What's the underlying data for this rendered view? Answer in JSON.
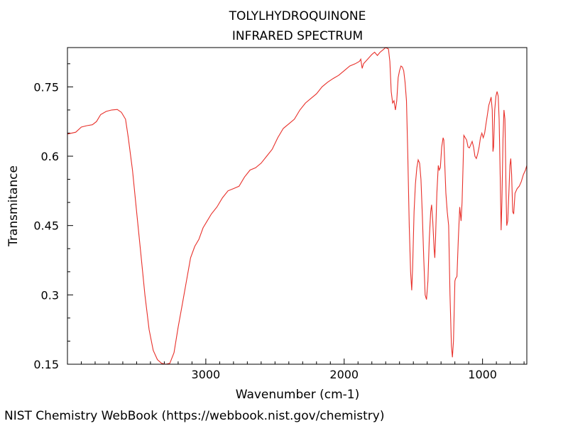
{
  "chart_data": {
    "type": "line",
    "title": "TOLYLHYDROQUINONE",
    "subtitle": "INFRARED SPECTRUM",
    "xlabel": "Wavenumber (cm-1)",
    "ylabel": "Transmitance",
    "xlim": [
      4000,
      680
    ],
    "ylim": [
      0.15,
      0.835
    ],
    "x_reversed": true,
    "grid": false,
    "x_ticks": [
      3000,
      2000,
      1000
    ],
    "x_tick_labels": [
      "3000",
      "2000",
      "1000"
    ],
    "y_ticks": [
      0.15,
      0.3,
      0.45,
      0.6,
      0.75
    ],
    "y_tick_labels": [
      "0.15",
      "0.3",
      "0.45",
      "0.6",
      "0.75"
    ],
    "line_color": "#e8302a",
    "series": [
      {
        "points": [
          [
            4000,
            0.648
          ],
          [
            3940,
            0.652
          ],
          [
            3900,
            0.663
          ],
          [
            3860,
            0.666
          ],
          [
            3820,
            0.668
          ],
          [
            3790,
            0.675
          ],
          [
            3760,
            0.69
          ],
          [
            3720,
            0.697
          ],
          [
            3680,
            0.7
          ],
          [
            3640,
            0.701
          ],
          [
            3610,
            0.695
          ],
          [
            3580,
            0.68
          ],
          [
            3560,
            0.64
          ],
          [
            3530,
            0.57
          ],
          [
            3500,
            0.48
          ],
          [
            3470,
            0.39
          ],
          [
            3440,
            0.3
          ],
          [
            3410,
            0.225
          ],
          [
            3380,
            0.18
          ],
          [
            3350,
            0.16
          ],
          [
            3320,
            0.152
          ],
          [
            3290,
            0.15
          ],
          [
            3260,
            0.152
          ],
          [
            3230,
            0.175
          ],
          [
            3200,
            0.23
          ],
          [
            3170,
            0.28
          ],
          [
            3140,
            0.33
          ],
          [
            3110,
            0.38
          ],
          [
            3080,
            0.405
          ],
          [
            3050,
            0.42
          ],
          [
            3020,
            0.445
          ],
          [
            2990,
            0.46
          ],
          [
            2960,
            0.475
          ],
          [
            2920,
            0.49
          ],
          [
            2880,
            0.51
          ],
          [
            2840,
            0.525
          ],
          [
            2800,
            0.53
          ],
          [
            2760,
            0.535
          ],
          [
            2720,
            0.555
          ],
          [
            2680,
            0.57
          ],
          [
            2640,
            0.575
          ],
          [
            2600,
            0.585
          ],
          [
            2560,
            0.6
          ],
          [
            2520,
            0.615
          ],
          [
            2480,
            0.64
          ],
          [
            2440,
            0.66
          ],
          [
            2400,
            0.67
          ],
          [
            2360,
            0.68
          ],
          [
            2320,
            0.7
          ],
          [
            2280,
            0.715
          ],
          [
            2240,
            0.725
          ],
          [
            2200,
            0.735
          ],
          [
            2160,
            0.75
          ],
          [
            2120,
            0.76
          ],
          [
            2080,
            0.768
          ],
          [
            2040,
            0.775
          ],
          [
            2000,
            0.785
          ],
          [
            1960,
            0.795
          ],
          [
            1920,
            0.8
          ],
          [
            1890,
            0.805
          ],
          [
            1880,
            0.81
          ],
          [
            1870,
            0.79
          ],
          [
            1860,
            0.8
          ],
          [
            1830,
            0.81
          ],
          [
            1800,
            0.82
          ],
          [
            1780,
            0.825
          ],
          [
            1760,
            0.818
          ],
          [
            1740,
            0.825
          ],
          [
            1720,
            0.83
          ],
          [
            1700,
            0.835
          ],
          [
            1680,
            0.832
          ],
          [
            1670,
            0.805
          ],
          [
            1660,
            0.74
          ],
          [
            1650,
            0.715
          ],
          [
            1640,
            0.72
          ],
          [
            1630,
            0.7
          ],
          [
            1620,
            0.72
          ],
          [
            1610,
            0.77
          ],
          [
            1600,
            0.785
          ],
          [
            1590,
            0.795
          ],
          [
            1580,
            0.793
          ],
          [
            1570,
            0.785
          ],
          [
            1560,
            0.76
          ],
          [
            1550,
            0.72
          ],
          [
            1540,
            0.6
          ],
          [
            1530,
            0.45
          ],
          [
            1520,
            0.35
          ],
          [
            1512,
            0.31
          ],
          [
            1505,
            0.36
          ],
          [
            1495,
            0.48
          ],
          [
            1485,
            0.54
          ],
          [
            1475,
            0.575
          ],
          [
            1465,
            0.592
          ],
          [
            1455,
            0.585
          ],
          [
            1445,
            0.55
          ],
          [
            1435,
            0.47
          ],
          [
            1425,
            0.38
          ],
          [
            1415,
            0.3
          ],
          [
            1405,
            0.29
          ],
          [
            1395,
            0.33
          ],
          [
            1385,
            0.42
          ],
          [
            1375,
            0.48
          ],
          [
            1368,
            0.495
          ],
          [
            1360,
            0.46
          ],
          [
            1350,
            0.4
          ],
          [
            1345,
            0.38
          ],
          [
            1340,
            0.42
          ],
          [
            1330,
            0.52
          ],
          [
            1320,
            0.58
          ],
          [
            1313,
            0.57
          ],
          [
            1305,
            0.575
          ],
          [
            1295,
            0.62
          ],
          [
            1285,
            0.64
          ],
          [
            1280,
            0.635
          ],
          [
            1275,
            0.6
          ],
          [
            1265,
            0.52
          ],
          [
            1255,
            0.48
          ],
          [
            1245,
            0.45
          ],
          [
            1235,
            0.3
          ],
          [
            1225,
            0.19
          ],
          [
            1218,
            0.165
          ],
          [
            1210,
            0.2
          ],
          [
            1200,
            0.33
          ],
          [
            1195,
            0.335
          ],
          [
            1185,
            0.34
          ],
          [
            1175,
            0.42
          ],
          [
            1165,
            0.49
          ],
          [
            1155,
            0.46
          ],
          [
            1148,
            0.5
          ],
          [
            1140,
            0.59
          ],
          [
            1135,
            0.645
          ],
          [
            1125,
            0.64
          ],
          [
            1115,
            0.635
          ],
          [
            1105,
            0.62
          ],
          [
            1095,
            0.618
          ],
          [
            1085,
            0.625
          ],
          [
            1075,
            0.632
          ],
          [
            1065,
            0.62
          ],
          [
            1055,
            0.6
          ],
          [
            1045,
            0.595
          ],
          [
            1035,
            0.605
          ],
          [
            1025,
            0.62
          ],
          [
            1015,
            0.64
          ],
          [
            1005,
            0.65
          ],
          [
            995,
            0.64
          ],
          [
            985,
            0.65
          ],
          [
            975,
            0.67
          ],
          [
            965,
            0.69
          ],
          [
            955,
            0.71
          ],
          [
            945,
            0.72
          ],
          [
            938,
            0.728
          ],
          [
            930,
            0.7
          ],
          [
            925,
            0.61
          ],
          [
            920,
            0.62
          ],
          [
            912,
            0.7
          ],
          [
            903,
            0.73
          ],
          [
            895,
            0.74
          ],
          [
            887,
            0.73
          ],
          [
            880,
            0.68
          ],
          [
            872,
            0.55
          ],
          [
            866,
            0.44
          ],
          [
            860,
            0.5
          ],
          [
            852,
            0.64
          ],
          [
            845,
            0.7
          ],
          [
            838,
            0.68
          ],
          [
            830,
            0.52
          ],
          [
            825,
            0.45
          ],
          [
            818,
            0.46
          ],
          [
            810,
            0.52
          ],
          [
            802,
            0.58
          ],
          [
            796,
            0.595
          ],
          [
            790,
            0.56
          ],
          [
            782,
            0.48
          ],
          [
            775,
            0.475
          ],
          [
            765,
            0.52
          ],
          [
            750,
            0.53
          ],
          [
            735,
            0.535
          ],
          [
            720,
            0.545
          ],
          [
            705,
            0.56
          ],
          [
            690,
            0.57
          ],
          [
            680,
            0.58
          ]
        ]
      }
    ]
  },
  "footer": {
    "credit": "NIST Chemistry WebBook (https://webbook.nist.gov/chemistry)"
  }
}
